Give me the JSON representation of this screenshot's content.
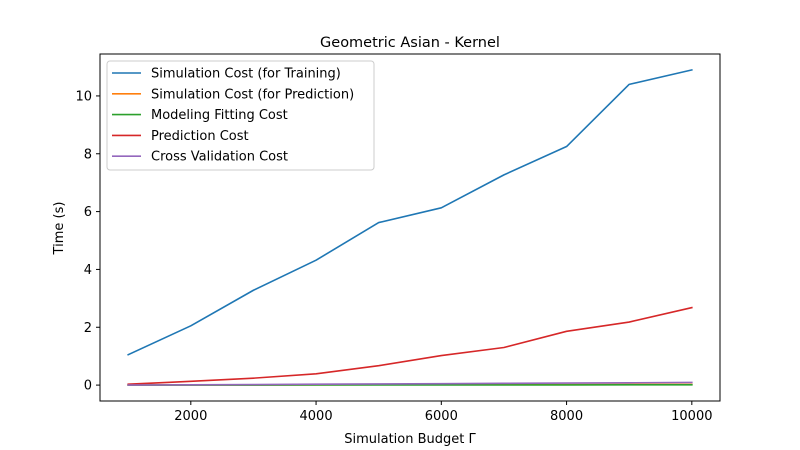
{
  "chart_data": {
    "type": "line",
    "title": "Geometric Asian - Kernel",
    "xlabel": "Simulation Budget Γ",
    "ylabel": "Time (s)",
    "x": [
      1000,
      2000,
      3000,
      4000,
      5000,
      6000,
      7000,
      8000,
      9000,
      10000
    ],
    "xlim": [
      550,
      10450
    ],
    "ylim": [
      -0.55,
      11.45
    ],
    "xticks": [
      2000,
      4000,
      6000,
      8000,
      10000
    ],
    "xtick_labels": [
      "2000",
      "4000",
      "6000",
      "8000",
      "10000"
    ],
    "yticks": [
      0,
      2,
      4,
      6,
      8,
      10
    ],
    "ytick_labels": [
      "0",
      "2",
      "4",
      "6",
      "8",
      "10"
    ],
    "grid": false,
    "legend_position": "top-left",
    "series": [
      {
        "name": "Simulation Cost (for Training)",
        "color": "#1f77b4",
        "values": [
          1.05,
          2.05,
          3.28,
          4.32,
          5.62,
          6.13,
          7.27,
          8.25,
          10.4,
          10.9
        ]
      },
      {
        "name": "Simulation Cost (for Prediction)",
        "color": "#ff7f0e",
        "values": [
          0.0,
          0.005,
          0.007,
          0.01,
          0.012,
          0.015,
          0.018,
          0.02,
          0.022,
          0.025
        ]
      },
      {
        "name": "Modeling Fitting Cost",
        "color": "#2ca02c",
        "values": [
          0.0,
          0.001,
          0.002,
          0.003,
          0.004,
          0.005,
          0.006,
          0.007,
          0.008,
          0.009
        ]
      },
      {
        "name": "Prediction Cost",
        "color": "#d62728",
        "values": [
          0.03,
          0.13,
          0.24,
          0.39,
          0.67,
          1.02,
          1.3,
          1.86,
          2.18,
          2.68
        ]
      },
      {
        "name": "Cross Validation Cost",
        "color": "#9467bd",
        "values": [
          0.0,
          0.01,
          0.02,
          0.03,
          0.04,
          0.05,
          0.06,
          0.07,
          0.08,
          0.09
        ]
      }
    ]
  }
}
